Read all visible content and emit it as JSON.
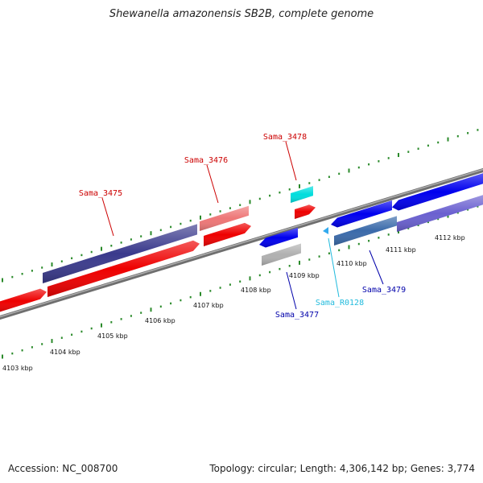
{
  "title": "Shewanella amazonensis SB2B, complete genome",
  "footer": {
    "accession": "Accession: NC_008700",
    "summary": "Topology: circular; Length: 4,306,142 bp; Genes: 3,774"
  },
  "colors": {
    "forward_cds": "#0000ee",
    "reverse_cds": "#ee0000",
    "rna": "#00dddd",
    "backbone": "#808080",
    "tick": "#2a8a2a"
  },
  "axis_ticks": [
    {
      "label": "4103 kbp"
    },
    {
      "label": "4104 kbp"
    },
    {
      "label": "4105 kbp"
    },
    {
      "label": "4106 kbp"
    },
    {
      "label": "4107 kbp"
    },
    {
      "label": "4108 kbp"
    },
    {
      "label": "4109 kbp"
    },
    {
      "label": "4110 kbp"
    },
    {
      "label": "4111 kbp"
    },
    {
      "label": "4112 kbp"
    }
  ],
  "gene_labels": [
    {
      "name": "Sama_3475",
      "color": "#cc0000"
    },
    {
      "name": "Sama_3476",
      "color": "#cc0000"
    },
    {
      "name": "Sama_3478",
      "color": "#cc0000"
    },
    {
      "name": "Sama_3477",
      "color": "#0000aa"
    },
    {
      "name": "Sama_R0128",
      "color": "#22bbdd"
    },
    {
      "name": "Sama_3479",
      "color": "#0000aa"
    }
  ]
}
